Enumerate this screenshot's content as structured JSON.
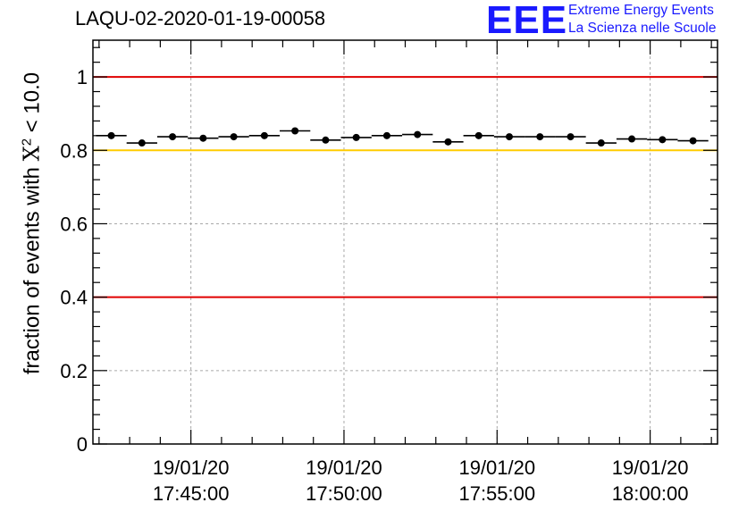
{
  "header": {
    "title": "LAQU-02-2020-01-19-00058",
    "logo_text": "EEE",
    "logo_line1": "Extreme Energy Events",
    "logo_line2": "La Scienza nelle Scuole"
  },
  "chart_data": {
    "type": "scatter",
    "title": "LAQU-02-2020-01-19-00058",
    "ylabel_prefix": "fraction of events with ",
    "ylabel_symbol": "X",
    "ylabel_exp": "2",
    "ylabel_suffix": " < 10.0",
    "xlabel": "",
    "ylim": [
      0,
      1.1
    ],
    "yticks": [
      0,
      0.2,
      0.4,
      0.6,
      0.8,
      1
    ],
    "ytick_labels": [
      "0",
      "0.2",
      "0.4",
      "0.6",
      "0.8",
      "1"
    ],
    "xlim_minutes": [
      -13.2,
      7.2
    ],
    "xticks_minutes": [
      -10,
      -5,
      0,
      5
    ],
    "xtick_labels": [
      [
        "19/01/20",
        "17:45:00"
      ],
      [
        "19/01/20",
        "17:50:00"
      ],
      [
        "19/01/20",
        "17:55:00"
      ],
      [
        "19/01/20",
        "18:00:00"
      ]
    ],
    "grid": true,
    "reference_lines": [
      {
        "y": 1.0,
        "color": "#e00000"
      },
      {
        "y": 0.8,
        "color": "#ffcc00"
      },
      {
        "y": 0.4,
        "color": "#e00000"
      }
    ],
    "bin_width_minutes": 1.0,
    "series": [
      {
        "name": "fraction",
        "x_minutes": [
          -12.6,
          -11.6,
          -10.6,
          -9.6,
          -8.6,
          -7.6,
          -6.6,
          -5.6,
          -4.6,
          -3.6,
          -2.6,
          -1.6,
          -0.6,
          0.4,
          1.4,
          2.4,
          3.4,
          4.4,
          5.4,
          6.4
        ],
        "values": [
          0.84,
          0.82,
          0.837,
          0.833,
          0.837,
          0.84,
          0.853,
          0.828,
          0.835,
          0.84,
          0.843,
          0.823,
          0.84,
          0.837,
          0.837,
          0.837,
          0.82,
          0.831,
          0.829,
          0.826
        ]
      }
    ]
  }
}
